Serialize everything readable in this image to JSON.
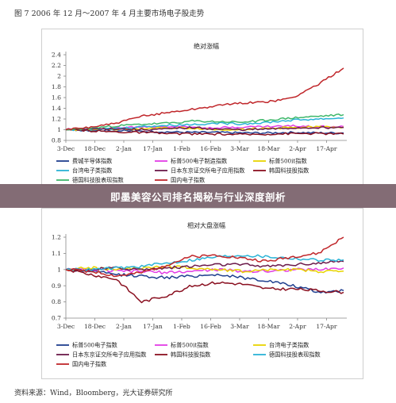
{
  "figure_title": "图 7 2006 年 12 月～2007 年 4 月主要市场电子股走势",
  "banner_text": "即墨美容公司排名揭秘与行业深度剖析",
  "source_text": "资料来源：Wind，Bloomberg，光大证券研究所",
  "chart_data": [
    {
      "type": "line",
      "title": "绝对涨幅",
      "x_ticks": [
        "3-Dec",
        "18-Dec",
        "2-Jan",
        "17-Jan",
        "1-Feb",
        "16-Feb",
        "3-Mar",
        "18-Mar",
        "2-Apr",
        "17-Apr"
      ],
      "ylim": [
        0.8,
        2.4
      ],
      "y_ticks": [
        "0.8",
        "1",
        "1.2",
        "1.4",
        "1.6",
        "1.8",
        "2",
        "2.2",
        "2.4"
      ],
      "grid": false,
      "legend_position": "bottom",
      "series": [
        {
          "name": "费城半导体指数",
          "color": "#1f3f8f",
          "anchors": [
            1.0,
            0.99,
            0.98,
            0.97,
            0.96,
            0.95,
            0.95,
            0.94,
            0.94,
            0.95,
            0.94,
            0.94
          ]
        },
        {
          "name": "标普500电子制造指数",
          "color": "#e23ce6",
          "anchors": [
            1.0,
            1.02,
            1.04,
            1.05,
            1.06,
            1.05,
            1.04,
            1.05,
            1.06,
            1.07,
            1.06,
            1.06
          ]
        },
        {
          "name": "标普500it指数",
          "color": "#e8d400",
          "anchors": [
            1.0,
            1.01,
            1.01,
            1.02,
            1.03,
            1.03,
            1.0,
            1.01,
            1.02,
            1.04,
            1.05,
            1.05
          ]
        },
        {
          "name": "台湾电子类指数",
          "color": "#2ab3d6",
          "anchors": [
            1.0,
            1.0,
            1.02,
            1.06,
            1.08,
            1.1,
            1.12,
            1.11,
            1.14,
            1.18,
            1.2,
            1.22
          ]
        },
        {
          "name": "日本东京证交所电子应用指数",
          "color": "#6b1a4a",
          "anchors": [
            1.0,
            1.01,
            1.02,
            1.0,
            1.01,
            1.04,
            1.01,
            1.0,
            1.01,
            1.03,
            1.04,
            1.04
          ]
        },
        {
          "name": "韩国科技股指数",
          "color": "#8a1020",
          "anchors": [
            1.0,
            0.98,
            0.96,
            0.95,
            0.93,
            0.92,
            0.92,
            0.91,
            0.92,
            0.93,
            0.93,
            0.92
          ]
        },
        {
          "name": "德国科技股表现指数",
          "color": "#3fb86b",
          "anchors": [
            1.0,
            1.03,
            1.07,
            1.1,
            1.12,
            1.16,
            1.15,
            1.14,
            1.18,
            1.22,
            1.25,
            1.28
          ]
        },
        {
          "name": "国内电子指数",
          "color": "#c0262a",
          "anchors": [
            1.0,
            1.05,
            1.12,
            1.25,
            1.32,
            1.38,
            1.45,
            1.5,
            1.52,
            1.6,
            1.85,
            2.15
          ]
        }
      ]
    },
    {
      "type": "line",
      "title": "相对大盘涨幅",
      "x_ticks": [
        "3-Dec",
        "18-Dec",
        "2-Jan",
        "17-Jan",
        "1-Feb",
        "16-Feb",
        "3-Mar",
        "18-Mar",
        "2-Apr",
        "17-Apr"
      ],
      "ylim": [
        0.7,
        1.2
      ],
      "y_ticks": [
        "0.7",
        "0.8",
        "0.9",
        "1",
        "1.1",
        "1.2"
      ],
      "grid": false,
      "legend_position": "bottom",
      "series": [
        {
          "name": "标普500电子指数",
          "color": "#1f3f8f",
          "anchors": [
            1.0,
            0.99,
            0.97,
            0.96,
            0.95,
            0.96,
            0.97,
            0.95,
            0.93,
            0.9,
            0.86,
            0.87
          ]
        },
        {
          "name": "标普500it指数",
          "color": "#e23ce6",
          "anchors": [
            1.0,
            1.0,
            0.99,
            0.99,
            0.98,
            0.99,
            1.0,
            0.99,
            0.99,
            1.0,
            1.0,
            1.01
          ]
        },
        {
          "name": "台湾电子类指数",
          "color": "#e8d400",
          "anchors": [
            1.0,
            1.01,
            1.0,
            1.01,
            1.02,
            1.01,
            1.0,
            0.99,
            1.0,
            1.0,
            0.99,
            0.99
          ]
        },
        {
          "name": "日本东京证交所电子应用指数",
          "color": "#6b1a4a",
          "anchors": [
            1.0,
            1.0,
            1.01,
            1.0,
            1.01,
            1.02,
            1.03,
            1.03,
            1.02,
            1.03,
            1.04,
            1.05
          ]
        },
        {
          "name": "韩国科技股指数",
          "color": "#8a1020",
          "anchors": [
            1.0,
            0.97,
            0.94,
            0.8,
            0.84,
            0.9,
            0.92,
            0.91,
            0.88,
            0.88,
            0.87,
            0.86
          ]
        },
        {
          "name": "德国科技股表现指数",
          "color": "#2ab3d6",
          "anchors": [
            1.0,
            1.0,
            1.01,
            1.02,
            1.04,
            1.06,
            1.08,
            1.09,
            1.08,
            1.07,
            1.06,
            1.06
          ]
        },
        {
          "name": "国内电子指数",
          "color": "#c0262a",
          "anchors": [
            1.0,
            0.99,
            0.96,
            0.98,
            1.03,
            1.08,
            1.09,
            1.07,
            1.05,
            1.08,
            1.1,
            1.2
          ]
        }
      ]
    }
  ]
}
